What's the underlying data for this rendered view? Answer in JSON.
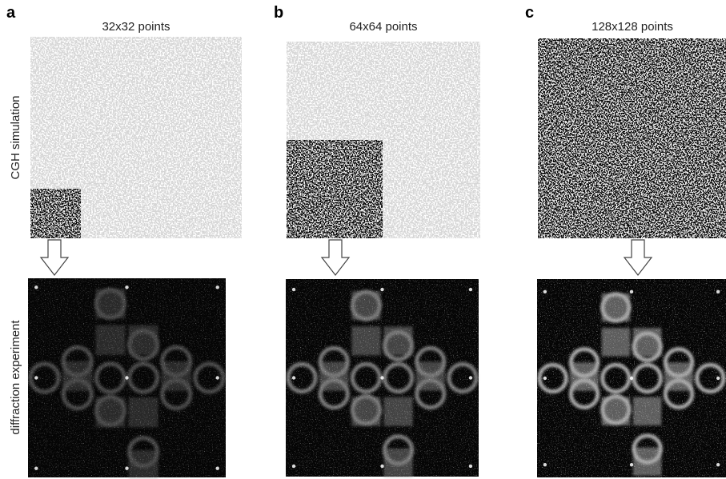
{
  "panels": [
    {
      "letter": "a",
      "title": "32x32 points"
    },
    {
      "letter": "b",
      "title": "64x64 points"
    },
    {
      "letter": "c",
      "title": "128x128 points"
    }
  ],
  "row_labels": [
    "CGH simulation",
    "diffraction experiment"
  ]
}
